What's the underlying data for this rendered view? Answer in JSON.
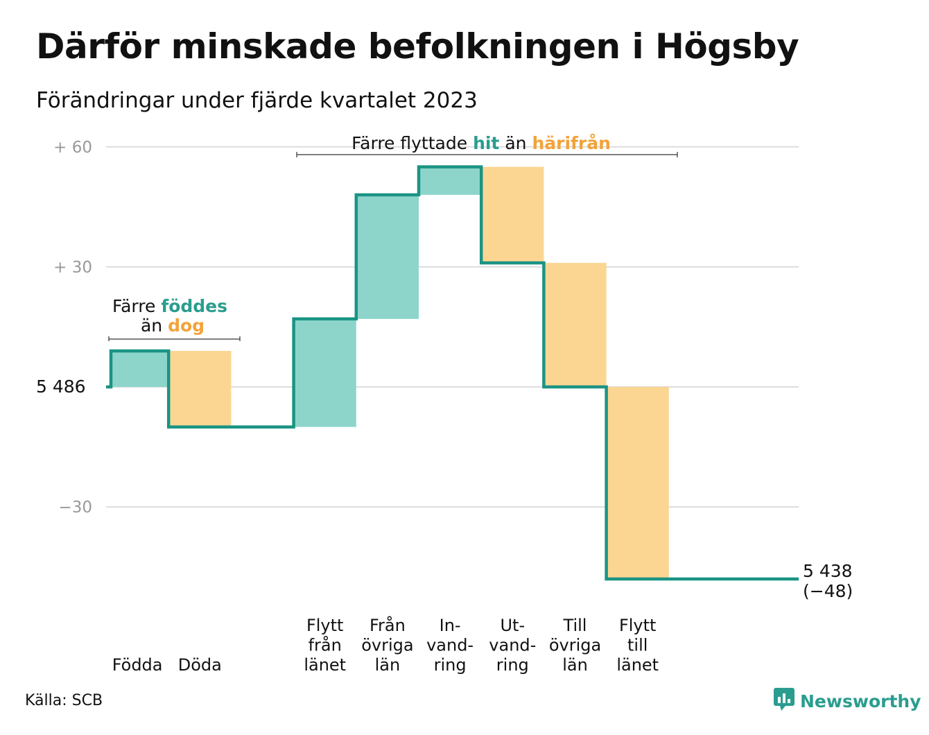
{
  "header": {
    "title": "Därför minskade befolkningen i Högsby",
    "subtitle": "Förändringar under fjärde kvartalet 2023"
  },
  "footer": {
    "source": "Källa: SCB",
    "brand": "Newsworthy",
    "brand_icon": "bar-chart-speech-icon"
  },
  "colors": {
    "inflow": "#8dd5cb",
    "outflow": "#fbd692",
    "line": "#1a9484",
    "accent_teal": "#2a9d8f",
    "accent_orange": "#f2a33a",
    "grid": "#dddddd",
    "tick": "#999999"
  },
  "annotations": {
    "births": {
      "line1_prefix": "Färre",
      "line1_highlight": "föddes",
      "line2_prefix": "än",
      "line2_highlight": "dog"
    },
    "migration": {
      "prefix": "Färre flyttade",
      "highlight1": "hit",
      "middle": "än",
      "highlight2": "härifrån"
    }
  },
  "chart_data": {
    "type": "waterfall",
    "baseline": 5486,
    "baseline_label": "5  486",
    "end_label": "5 438",
    "end_change_label": "(−48)",
    "ylim": [
      -48,
      60
    ],
    "y_ticks": [
      {
        "value": 60,
        "label": "+  60"
      },
      {
        "value": 30,
        "label": "+  30"
      },
      {
        "value": 0,
        "label": ""
      },
      {
        "value": -30,
        "label": "−30"
      }
    ],
    "steps": [
      {
        "label_lines": [
          "Födda"
        ],
        "change": 9
      },
      {
        "label_lines": [
          "Döda"
        ],
        "change": -19
      },
      {
        "label_lines": [],
        "change": 0
      },
      {
        "label_lines": [
          "Flytt",
          "från",
          "länet"
        ],
        "change": 27
      },
      {
        "label_lines": [
          "Från",
          "övriga",
          "län"
        ],
        "change": 31
      },
      {
        "label_lines": [
          "In-",
          "vand-",
          "ring"
        ],
        "change": 7
      },
      {
        "label_lines": [
          "Ut-",
          "vand-",
          "ring"
        ],
        "change": -24
      },
      {
        "label_lines": [
          "Till",
          "övriga",
          "län"
        ],
        "change": -31
      },
      {
        "label_lines": [
          "Flytt",
          "till",
          "länet"
        ],
        "change": -48
      }
    ]
  }
}
